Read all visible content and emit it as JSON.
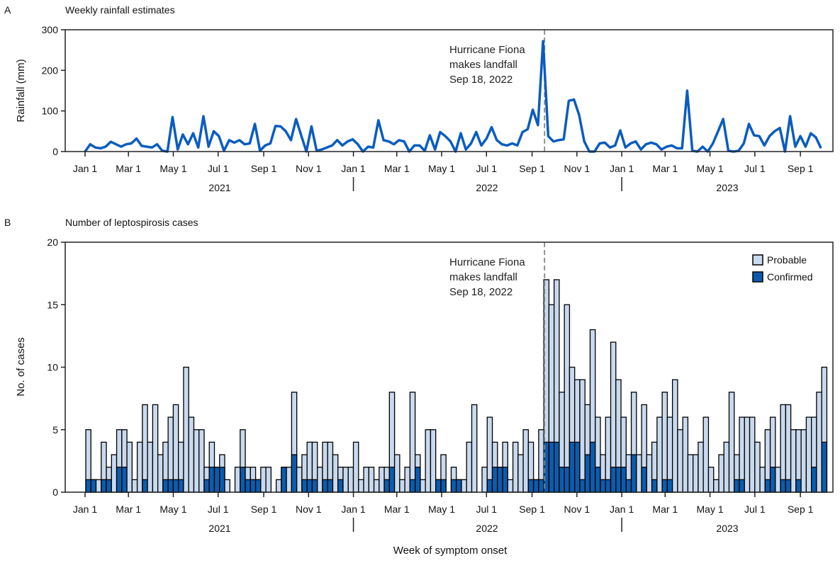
{
  "colors": {
    "rainfall_line": "#0a5cbf",
    "probable": "#c9d9ee",
    "confirmed": "#0b5cad",
    "annotation_line": "#888888"
  },
  "chart_data": [
    {
      "type": "line",
      "panel_letter": "A",
      "title": "Weekly rainfall estimates",
      "ylabel": "Rainfall (mm)",
      "xlabel": "",
      "ylim": [
        0,
        300
      ],
      "yticks": [
        "0",
        "100",
        "200",
        "300"
      ],
      "x_start_week": "2021-01-01",
      "x_interval": "weekly",
      "month_ticks": [
        "Jan 1",
        "Mar 1",
        "May 1",
        "Jul 1",
        "Sep 1",
        "Nov 1",
        "Jan 1",
        "Mar 1",
        "May 1",
        "Jul 1",
        "Sep 1",
        "Nov 1",
        "Jan 1",
        "Mar 1",
        "May 1",
        "Jul 1",
        "Sep 1"
      ],
      "year_labels": [
        "2021",
        "2022",
        "2023"
      ],
      "annotation": {
        "lines": [
          "Hurricane Fiona",
          "makes landfall",
          "Sep 18, 2022"
        ],
        "date": "2022-09-18"
      },
      "grid": false,
      "values": [
        0,
        18,
        10,
        8,
        12,
        24,
        18,
        12,
        18,
        20,
        32,
        14,
        12,
        10,
        18,
        2,
        0,
        85,
        5,
        42,
        18,
        45,
        10,
        87,
        12,
        50,
        38,
        2,
        28,
        22,
        28,
        18,
        20,
        68,
        2,
        15,
        20,
        63,
        62,
        50,
        28,
        80,
        40,
        0,
        62,
        2,
        5,
        10,
        15,
        28,
        15,
        25,
        30,
        18,
        0,
        12,
        10,
        77,
        28,
        25,
        18,
        28,
        25,
        0,
        15,
        15,
        2,
        40,
        5,
        48,
        38,
        25,
        0,
        45,
        5,
        20,
        48,
        15,
        32,
        60,
        28,
        18,
        15,
        20,
        15,
        48,
        55,
        103,
        65,
        272,
        38,
        25,
        28,
        30,
        125,
        128,
        90,
        25,
        0,
        0,
        20,
        22,
        10,
        15,
        52,
        10,
        20,
        25,
        5,
        18,
        22,
        18,
        5,
        12,
        15,
        8,
        8,
        150,
        2,
        0,
        12,
        0,
        20,
        50,
        80,
        2,
        0,
        2,
        20,
        68,
        40,
        38,
        15,
        38,
        50,
        58,
        0,
        87,
        12,
        38,
        12,
        45,
        35,
        8
      ]
    },
    {
      "type": "bar",
      "stacked": true,
      "panel_letter": "B",
      "title": "Number of leptospirosis cases",
      "ylabel": "No. of cases",
      "xlabel": "Week of symptom onset",
      "ylim": [
        0,
        20
      ],
      "yticks": [
        "0",
        "5",
        "10",
        "15",
        "20"
      ],
      "x_start_week": "2021-01-01",
      "x_interval": "weekly",
      "month_ticks": [
        "Jan 1",
        "Mar 1",
        "May 1",
        "Jul 1",
        "Sep 1",
        "Nov 1",
        "Jan 1",
        "Mar 1",
        "May 1",
        "Jul 1",
        "Sep 1",
        "Nov 1",
        "Jan 1",
        "Mar 1",
        "May 1",
        "Jul 1",
        "Sep 1"
      ],
      "year_labels": [
        "2021",
        "2022",
        "2023"
      ],
      "annotation": {
        "lines": [
          "Hurricane Fiona",
          "makes landfall",
          "Sep 18, 2022"
        ],
        "date": "2022-09-18"
      },
      "legend": {
        "position": "top-right",
        "entries": [
          "Probable",
          "Confirmed"
        ]
      },
      "grid": false,
      "total": [
        5,
        1,
        1,
        4,
        2,
        3,
        5,
        5,
        4,
        1,
        4,
        7,
        4,
        7,
        3,
        4,
        6,
        7,
        4,
        10,
        6,
        5,
        5,
        2,
        4,
        2,
        3,
        1,
        0,
        2,
        5,
        2,
        2,
        1,
        2,
        2,
        0,
        1,
        2,
        2,
        8,
        2,
        3,
        4,
        4,
        2,
        4,
        4,
        3,
        2,
        2,
        2,
        4,
        1,
        2,
        2,
        1,
        2,
        2,
        8,
        3,
        1,
        2,
        8,
        3,
        1,
        5,
        5,
        1,
        3,
        0,
        2,
        1,
        1,
        4,
        7,
        0,
        2,
        6,
        4,
        2,
        4,
        1,
        4,
        3,
        5,
        4,
        1,
        5,
        17,
        15,
        17,
        8,
        15,
        10,
        9,
        9,
        7,
        13,
        6,
        3,
        6,
        12,
        9,
        6,
        3,
        8,
        3,
        7,
        3,
        4,
        6,
        8,
        6,
        9,
        5,
        6,
        3,
        3,
        4,
        6,
        2,
        1,
        3,
        4,
        8,
        3,
        6,
        6,
        6,
        4,
        2,
        5,
        6,
        2,
        7,
        7,
        5,
        5,
        5,
        6,
        6,
        8,
        10
      ],
      "confirmed": [
        1,
        1,
        0,
        1,
        1,
        0,
        2,
        2,
        0,
        0,
        0,
        1,
        0,
        0,
        0,
        1,
        1,
        1,
        1,
        0,
        0,
        0,
        0,
        1,
        2,
        2,
        2,
        0,
        0,
        0,
        2,
        1,
        1,
        1,
        0,
        0,
        0,
        0,
        2,
        0,
        3,
        0,
        1,
        1,
        1,
        0,
        1,
        1,
        0,
        1,
        0,
        0,
        0,
        0,
        0,
        0,
        0,
        0,
        1,
        2,
        0,
        0,
        0,
        1,
        2,
        0,
        0,
        0,
        1,
        1,
        0,
        1,
        1,
        0,
        0,
        0,
        0,
        0,
        1,
        2,
        2,
        2,
        0,
        0,
        0,
        0,
        1,
        1,
        1,
        4,
        4,
        4,
        2,
        2,
        4,
        4,
        1,
        3,
        4,
        2,
        1,
        1,
        2,
        2,
        2,
        1,
        3,
        0,
        2,
        0,
        1,
        0,
        1,
        1,
        0,
        0,
        0,
        0,
        0,
        0,
        0,
        0,
        0,
        0,
        0,
        0,
        1,
        1,
        0,
        0,
        0,
        0,
        1,
        2,
        0,
        1,
        1,
        0,
        1,
        0,
        0,
        2,
        0,
        4
      ]
    }
  ]
}
